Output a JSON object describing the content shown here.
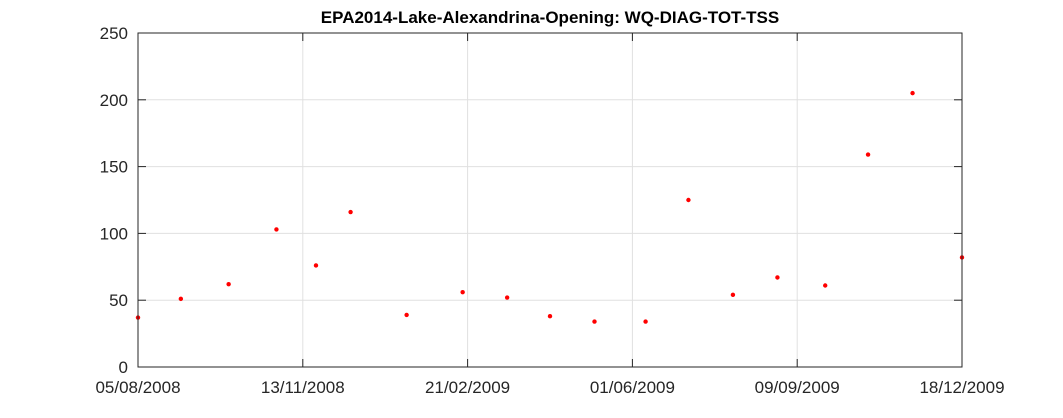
{
  "chart_data": {
    "type": "scatter",
    "title": "EPA2014-Lake-Alexandrina-Opening: WQ-DIAG-TOT-TSS",
    "xlabel": "",
    "ylabel": "",
    "x_axis_type": "date",
    "xlim": [
      "2008-08-05",
      "2009-12-18"
    ],
    "ylim": [
      0,
      250
    ],
    "xticks": [
      {
        "value": "2008-08-05",
        "label": "05/08/2008"
      },
      {
        "value": "2008-11-13",
        "label": "13/11/2008"
      },
      {
        "value": "2009-02-21",
        "label": "21/02/2009"
      },
      {
        "value": "2009-06-01",
        "label": "01/06/2009"
      },
      {
        "value": "2009-09-09",
        "label": "09/09/2009"
      },
      {
        "value": "2009-12-18",
        "label": "18/12/2009"
      }
    ],
    "yticks": [
      {
        "value": 0,
        "label": "0"
      },
      {
        "value": 50,
        "label": "50"
      },
      {
        "value": 100,
        "label": "100"
      },
      {
        "value": 150,
        "label": "150"
      },
      {
        "value": 200,
        "label": "200"
      },
      {
        "value": 250,
        "label": "250"
      }
    ],
    "grid": true,
    "legend": "none",
    "marker_color": "#ff0000",
    "series": [
      {
        "points": [
          {
            "x": "2008-08-05",
            "y": 37
          },
          {
            "x": "2008-08-31",
            "y": 51
          },
          {
            "x": "2008-09-29",
            "y": 62
          },
          {
            "x": "2008-10-28",
            "y": 103
          },
          {
            "x": "2008-11-21",
            "y": 76
          },
          {
            "x": "2008-12-12",
            "y": 116
          },
          {
            "x": "2009-01-15",
            "y": 39
          },
          {
            "x": "2009-02-18",
            "y": 56
          },
          {
            "x": "2009-03-17",
            "y": 52
          },
          {
            "x": "2009-04-12",
            "y": 38
          },
          {
            "x": "2009-05-09",
            "y": 34
          },
          {
            "x": "2009-06-09",
            "y": 34
          },
          {
            "x": "2009-07-05",
            "y": 125
          },
          {
            "x": "2009-08-01",
            "y": 54
          },
          {
            "x": "2009-08-28",
            "y": 67
          },
          {
            "x": "2009-09-26",
            "y": 61
          },
          {
            "x": "2009-10-22",
            "y": 159
          },
          {
            "x": "2009-11-18",
            "y": 205
          },
          {
            "x": "2009-12-18",
            "y": 82
          }
        ]
      }
    ]
  }
}
